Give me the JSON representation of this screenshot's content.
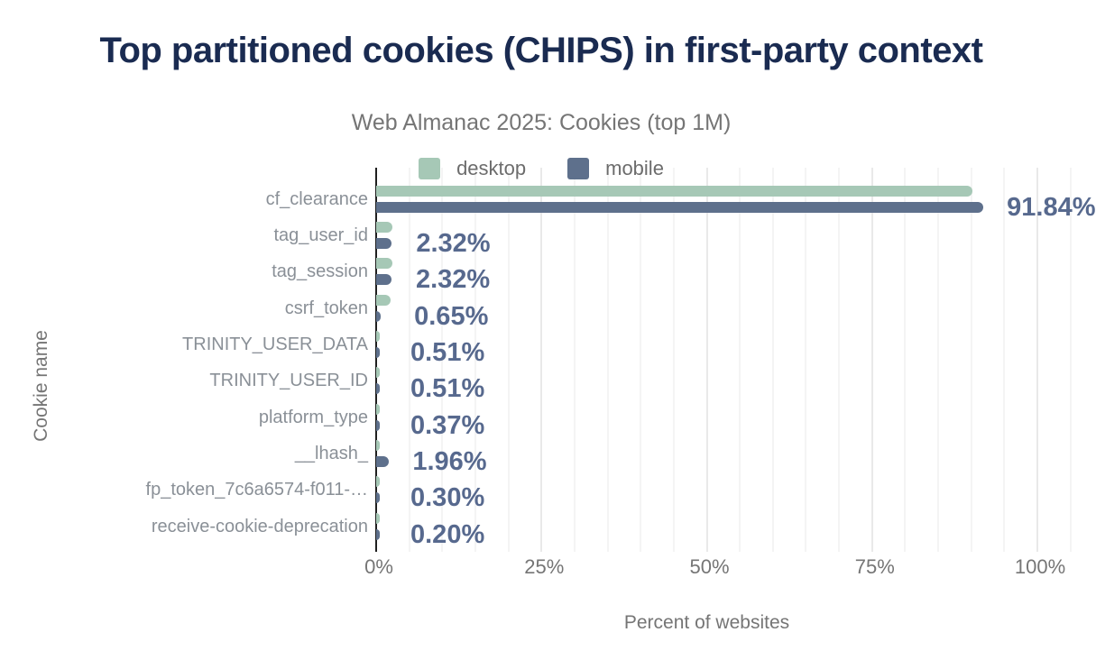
{
  "colors": {
    "title": "#1a2b51",
    "subtitle": "#757575",
    "category_label": "#8a9097",
    "value_label": "#57698e",
    "tick_label": "#757575",
    "axis_line": "#1f1f1f",
    "gridline_minor": "#f4f4f4",
    "gridline_major": "#e9e9e9",
    "desktop": "#a6c8b6",
    "mobile": "#5e708c"
  },
  "chart_data": {
    "type": "bar",
    "orientation": "horizontal",
    "title": "Top partitioned cookies (CHIPS) in first-party context",
    "subtitle": "Web Almanac 2025: Cookies (top 1M)",
    "xlabel": "Percent of websites",
    "ylabel": "Cookie name",
    "xlim": [
      0,
      105
    ],
    "grid": "vertical minor every 5%, major every 25%",
    "legend_position": "top-center",
    "x_ticks": [
      {
        "value": 0,
        "label": "0%"
      },
      {
        "value": 25,
        "label": "25%"
      },
      {
        "value": 50,
        "label": "50%"
      },
      {
        "value": 75,
        "label": "75%"
      },
      {
        "value": 100,
        "label": "100%"
      }
    ],
    "categories": [
      "cf_clearance",
      "tag_user_id",
      "tag_session",
      "csrf_token",
      "TRINITY_USER_DATA",
      "TRINITY_USER_ID",
      "platform_type",
      "__lhash_",
      "fp_token_7c6a6574-f011-…",
      "receive-cookie-deprecation"
    ],
    "series": [
      {
        "name": "desktop",
        "color": "#a6c8b6",
        "values": [
          90.2,
          2.5,
          2.45,
          2.2,
          0.55,
          0.5,
          0.5,
          0.3,
          0.35,
          0.2
        ]
      },
      {
        "name": "mobile",
        "color": "#5e708c",
        "values": [
          91.84,
          2.32,
          2.32,
          0.65,
          0.51,
          0.51,
          0.37,
          1.96,
          0.3,
          0.2
        ]
      }
    ],
    "value_labels": [
      "91.84%",
      "2.32%",
      "2.32%",
      "0.65%",
      "0.51%",
      "0.51%",
      "0.37%",
      "1.96%",
      "0.30%",
      "0.20%"
    ]
  }
}
